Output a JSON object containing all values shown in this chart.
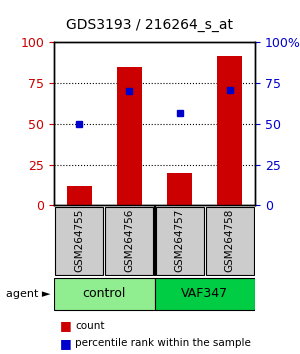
{
  "title": "GDS3193 / 216264_s_at",
  "samples": [
    "GSM264755",
    "GSM264756",
    "GSM264757",
    "GSM264758"
  ],
  "bar_values": [
    12,
    85,
    20,
    92
  ],
  "percentile_values": [
    50,
    70,
    57,
    71
  ],
  "groups": [
    {
      "label": "control",
      "samples": [
        0,
        1
      ],
      "color": "#90EE90"
    },
    {
      "label": "VAF347",
      "samples": [
        2,
        3
      ],
      "color": "#00CC00"
    }
  ],
  "bar_color": "#CC0000",
  "percentile_color": "#0000CC",
  "y_left_label": "",
  "y_right_label": "",
  "ylim": [
    0,
    100
  ],
  "yticks": [
    0,
    25,
    50,
    75,
    100
  ],
  "grid_lines": [
    25,
    50,
    75
  ],
  "background_color": "#ffffff",
  "plot_bg_color": "#ffffff",
  "legend_count_label": "count",
  "legend_pct_label": "percentile rank within the sample",
  "agent_label": "agent",
  "sample_box_color": "#cccccc"
}
